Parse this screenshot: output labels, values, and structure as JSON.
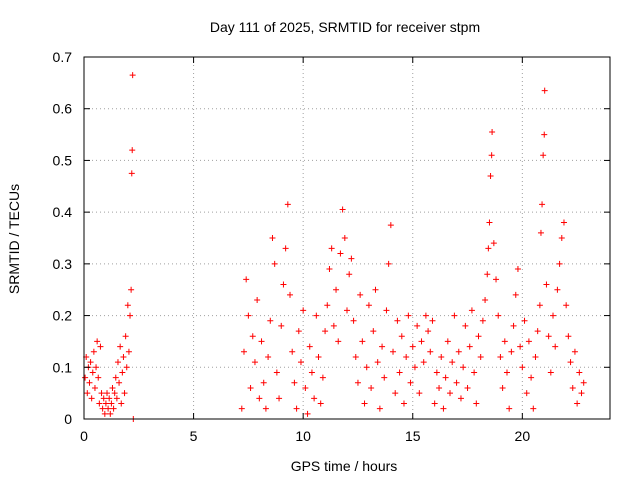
{
  "chart_data": {
    "type": "scatter",
    "title": "Day 111 of 2025, SRMTID for receiver stpm",
    "xlabel": "GPS time / hours",
    "ylabel": "SRMTID / TECUs",
    "xlim": [
      0,
      24
    ],
    "ylim": [
      0,
      0.7
    ],
    "xticks": [
      0,
      5,
      10,
      15,
      20
    ],
    "yticks": [
      0,
      0.1,
      0.2,
      0.3,
      0.4,
      0.5,
      0.6,
      0.7
    ],
    "xtick_labels": [
      "0",
      "5",
      "10",
      "15",
      "20"
    ],
    "ytick_labels": [
      "0",
      "0.1",
      "0.2",
      "0.3",
      "0.4",
      "0.5",
      "0.6",
      "0.7"
    ],
    "grid": true,
    "marker": "+",
    "color": "#ff0000",
    "series": [
      {
        "name": "stpm",
        "points": [
          [
            0.05,
            0.08
          ],
          [
            0.1,
            0.12
          ],
          [
            0.15,
            0.05
          ],
          [
            0.2,
            0.1
          ],
          [
            0.25,
            0.07
          ],
          [
            0.3,
            0.11
          ],
          [
            0.35,
            0.04
          ],
          [
            0.4,
            0.09
          ],
          [
            0.45,
            0.13
          ],
          [
            0.5,
            0.06
          ],
          [
            0.55,
            0.1
          ],
          [
            0.6,
            0.15
          ],
          [
            0.65,
            0.08
          ],
          [
            0.7,
            0.03
          ],
          [
            0.75,
            0.14
          ],
          [
            0.8,
            0.05
          ],
          [
            0.85,
            0.02
          ],
          [
            0.9,
            0.04
          ],
          [
            0.95,
            0.01
          ],
          [
            1.0,
            0.03
          ],
          [
            1.05,
            0.05
          ],
          [
            1.1,
            0.02
          ],
          [
            1.15,
            0.04
          ],
          [
            1.2,
            0.01
          ],
          [
            1.25,
            0.03
          ],
          [
            1.3,
            0.06
          ],
          [
            1.35,
            0.02
          ],
          [
            1.4,
            0.05
          ],
          [
            1.45,
            0.08
          ],
          [
            1.5,
            0.04
          ],
          [
            1.55,
            0.11
          ],
          [
            1.6,
            0.07
          ],
          [
            1.65,
            0.14
          ],
          [
            1.7,
            0.03
          ],
          [
            1.75,
            0.09
          ],
          [
            1.8,
            0.12
          ],
          [
            1.85,
            0.05
          ],
          [
            1.9,
            0.16
          ],
          [
            1.95,
            0.1
          ],
          [
            2.0,
            0.22
          ],
          [
            2.05,
            0.13
          ],
          [
            2.1,
            0.2
          ],
          [
            2.15,
            0.25
          ],
          [
            2.18,
            0.475
          ],
          [
            2.2,
            0.52
          ],
          [
            2.22,
            0.665
          ],
          [
            2.25,
            0.0
          ],
          [
            7.2,
            0.02
          ],
          [
            7.3,
            0.13
          ],
          [
            7.4,
            0.27
          ],
          [
            7.5,
            0.2
          ],
          [
            7.6,
            0.06
          ],
          [
            7.7,
            0.16
          ],
          [
            7.8,
            0.11
          ],
          [
            7.9,
            0.23
          ],
          [
            8.0,
            0.04
          ],
          [
            8.1,
            0.15
          ],
          [
            8.2,
            0.07
          ],
          [
            8.3,
            0.02
          ],
          [
            8.4,
            0.12
          ],
          [
            8.5,
            0.19
          ],
          [
            8.6,
            0.35
          ],
          [
            8.7,
            0.3
          ],
          [
            8.8,
            0.09
          ],
          [
            8.9,
            0.04
          ],
          [
            9.0,
            0.18
          ],
          [
            9.1,
            0.26
          ],
          [
            9.2,
            0.33
          ],
          [
            9.3,
            0.415
          ],
          [
            9.4,
            0.24
          ],
          [
            9.5,
            0.13
          ],
          [
            9.6,
            0.07
          ],
          [
            9.7,
            0.02
          ],
          [
            9.8,
            0.17
          ],
          [
            9.9,
            0.11
          ],
          [
            10.0,
            0.21
          ],
          [
            10.1,
            0.06
          ],
          [
            10.2,
            0.01
          ],
          [
            10.3,
            0.14
          ],
          [
            10.4,
            0.09
          ],
          [
            10.5,
            0.04
          ],
          [
            10.6,
            0.2
          ],
          [
            10.7,
            0.12
          ],
          [
            10.8,
            0.03
          ],
          [
            10.9,
            0.08
          ],
          [
            11.0,
            0.17
          ],
          [
            11.1,
            0.22
          ],
          [
            11.2,
            0.29
          ],
          [
            11.3,
            0.33
          ],
          [
            11.4,
            0.18
          ],
          [
            11.5,
            0.25
          ],
          [
            11.6,
            0.15
          ],
          [
            11.7,
            0.32
          ],
          [
            11.8,
            0.405
          ],
          [
            11.9,
            0.35
          ],
          [
            12.0,
            0.21
          ],
          [
            12.1,
            0.28
          ],
          [
            12.2,
            0.31
          ],
          [
            12.3,
            0.19
          ],
          [
            12.4,
            0.12
          ],
          [
            12.5,
            0.07
          ],
          [
            12.6,
            0.24
          ],
          [
            12.7,
            0.15
          ],
          [
            12.8,
            0.03
          ],
          [
            12.9,
            0.1
          ],
          [
            13.0,
            0.22
          ],
          [
            13.1,
            0.06
          ],
          [
            13.2,
            0.17
          ],
          [
            13.3,
            0.25
          ],
          [
            13.4,
            0.11
          ],
          [
            13.5,
            0.02
          ],
          [
            13.6,
            0.14
          ],
          [
            13.7,
            0.08
          ],
          [
            13.8,
            0.21
          ],
          [
            13.9,
            0.3
          ],
          [
            14.0,
            0.375
          ],
          [
            14.1,
            0.13
          ],
          [
            14.2,
            0.05
          ],
          [
            14.3,
            0.19
          ],
          [
            14.4,
            0.09
          ],
          [
            14.5,
            0.16
          ],
          [
            14.6,
            0.03
          ],
          [
            14.7,
            0.12
          ],
          [
            14.8,
            0.2
          ],
          [
            14.9,
            0.07
          ],
          [
            15.0,
            0.14
          ],
          [
            15.1,
            0.1
          ],
          [
            15.2,
            0.18
          ],
          [
            15.3,
            0.05
          ],
          [
            15.4,
            0.15
          ],
          [
            15.5,
            0.11
          ],
          [
            15.6,
            0.2
          ],
          [
            15.7,
            0.17
          ],
          [
            15.8,
            0.13
          ],
          [
            15.9,
            0.19
          ],
          [
            16.0,
            0.03
          ],
          [
            16.1,
            0.09
          ],
          [
            16.2,
            0.06
          ],
          [
            16.3,
            0.12
          ],
          [
            16.4,
            0.02
          ],
          [
            16.5,
            0.08
          ],
          [
            16.6,
            0.15
          ],
          [
            16.7,
            0.05
          ],
          [
            16.8,
            0.11
          ],
          [
            16.9,
            0.2
          ],
          [
            17.0,
            0.07
          ],
          [
            17.1,
            0.13
          ],
          [
            17.2,
            0.04
          ],
          [
            17.3,
            0.1
          ],
          [
            17.4,
            0.18
          ],
          [
            17.5,
            0.06
          ],
          [
            17.6,
            0.14
          ],
          [
            17.7,
            0.21
          ],
          [
            17.8,
            0.09
          ],
          [
            17.9,
            0.03
          ],
          [
            18.0,
            0.16
          ],
          [
            18.1,
            0.12
          ],
          [
            18.2,
            0.19
          ],
          [
            18.3,
            0.23
          ],
          [
            18.4,
            0.28
          ],
          [
            18.45,
            0.33
          ],
          [
            18.5,
            0.38
          ],
          [
            18.55,
            0.47
          ],
          [
            18.6,
            0.51
          ],
          [
            18.62,
            0.555
          ],
          [
            18.7,
            0.34
          ],
          [
            18.8,
            0.27
          ],
          [
            18.9,
            0.2
          ],
          [
            19.0,
            0.12
          ],
          [
            19.1,
            0.06
          ],
          [
            19.2,
            0.15
          ],
          [
            19.3,
            0.09
          ],
          [
            19.4,
            0.02
          ],
          [
            19.5,
            0.13
          ],
          [
            19.6,
            0.18
          ],
          [
            19.7,
            0.24
          ],
          [
            19.8,
            0.29
          ],
          [
            19.9,
            0.14
          ],
          [
            20.0,
            0.1
          ],
          [
            20.1,
            0.19
          ],
          [
            20.2,
            0.05
          ],
          [
            20.3,
            0.15
          ],
          [
            20.4,
            0.08
          ],
          [
            20.5,
            0.02
          ],
          [
            20.6,
            0.12
          ],
          [
            20.7,
            0.17
          ],
          [
            20.8,
            0.22
          ],
          [
            20.85,
            0.36
          ],
          [
            20.9,
            0.415
          ],
          [
            20.95,
            0.51
          ],
          [
            21.0,
            0.55
          ],
          [
            21.02,
            0.635
          ],
          [
            21.1,
            0.26
          ],
          [
            21.2,
            0.16
          ],
          [
            21.3,
            0.09
          ],
          [
            21.4,
            0.2
          ],
          [
            21.5,
            0.14
          ],
          [
            21.6,
            0.25
          ],
          [
            21.7,
            0.3
          ],
          [
            21.8,
            0.35
          ],
          [
            21.9,
            0.38
          ],
          [
            22.0,
            0.22
          ],
          [
            22.1,
            0.16
          ],
          [
            22.2,
            0.11
          ],
          [
            22.3,
            0.06
          ],
          [
            22.4,
            0.13
          ],
          [
            22.5,
            0.03
          ],
          [
            22.6,
            0.09
          ],
          [
            22.7,
            0.05
          ],
          [
            22.8,
            0.07
          ]
        ]
      }
    ]
  }
}
